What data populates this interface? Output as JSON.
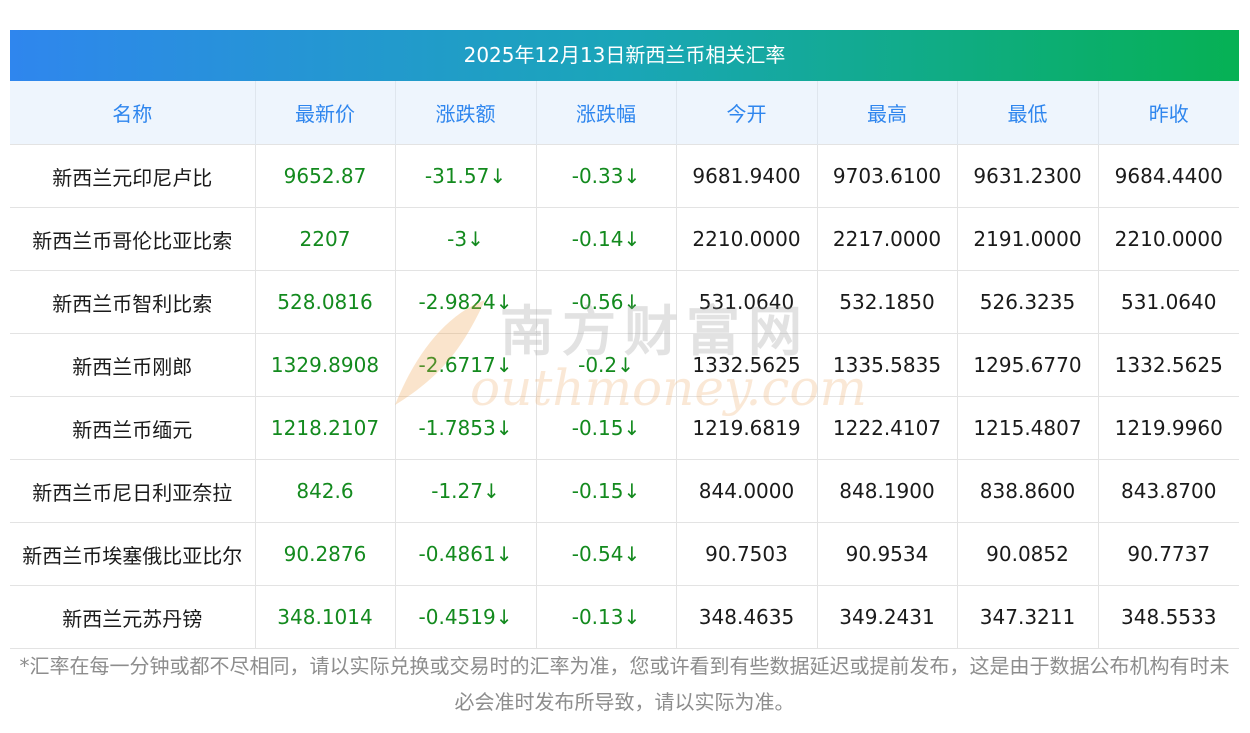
{
  "title": "2025年12月13日新西兰币相关汇率",
  "headers": [
    "名称",
    "最新价",
    "涨跌额",
    "涨跌幅",
    "今开",
    "最高",
    "最低",
    "昨收"
  ],
  "rows": [
    {
      "name": "新西兰元印尼卢比",
      "latest": "9652.87",
      "change": "-31.57↓",
      "pct": "-0.33↓",
      "open": "9681.9400",
      "high": "9703.6100",
      "low": "9631.2300",
      "prev": "9684.4400"
    },
    {
      "name": "新西兰币哥伦比亚比索",
      "latest": "2207",
      "change": "-3↓",
      "pct": "-0.14↓",
      "open": "2210.0000",
      "high": "2217.0000",
      "low": "2191.0000",
      "prev": "2210.0000"
    },
    {
      "name": "新西兰币智利比索",
      "latest": "528.0816",
      "change": "-2.9824↓",
      "pct": "-0.56↓",
      "open": "531.0640",
      "high": "532.1850",
      "low": "526.3235",
      "prev": "531.0640"
    },
    {
      "name": "新西兰币刚郎",
      "latest": "1329.8908",
      "change": "-2.6717↓",
      "pct": "-0.2↓",
      "open": "1332.5625",
      "high": "1335.5835",
      "low": "1295.6770",
      "prev": "1332.5625"
    },
    {
      "name": "新西兰币缅元",
      "latest": "1218.2107",
      "change": "-1.7853↓",
      "pct": "-0.15↓",
      "open": "1219.6819",
      "high": "1222.4107",
      "low": "1215.4807",
      "prev": "1219.9960"
    },
    {
      "name": "新西兰币尼日利亚奈拉",
      "latest": "842.6",
      "change": "-1.27↓",
      "pct": "-0.15↓",
      "open": "844.0000",
      "high": "848.1900",
      "low": "838.8600",
      "prev": "843.8700"
    },
    {
      "name": "新西兰币埃塞俄比亚比尔",
      "latest": "90.2876",
      "change": "-0.4861↓",
      "pct": "-0.54↓",
      "open": "90.7503",
      "high": "90.9534",
      "low": "90.0852",
      "prev": "90.7737"
    },
    {
      "name": "新西兰元苏丹镑",
      "latest": "348.1014",
      "change": "-0.4519↓",
      "pct": "-0.13↓",
      "open": "348.4635",
      "high": "349.2431",
      "low": "347.3211",
      "prev": "348.5533"
    }
  ],
  "watermark": {
    "cn": "南方财富网",
    "en": "outhmoney.com"
  },
  "note": "*汇率在每一分钟或都不尽相同，请以实际兑换或交易时的汇率为准，您或许看到有些数据延迟或提前发布，这是由于数据公布机构有时未必会准时发布所导致，请以实际为准。",
  "colors": {
    "header_text": "#2f86ee",
    "up_down_green": "#138a1e",
    "title_gradient": [
      "#2f86ee",
      "#06b154"
    ]
  }
}
